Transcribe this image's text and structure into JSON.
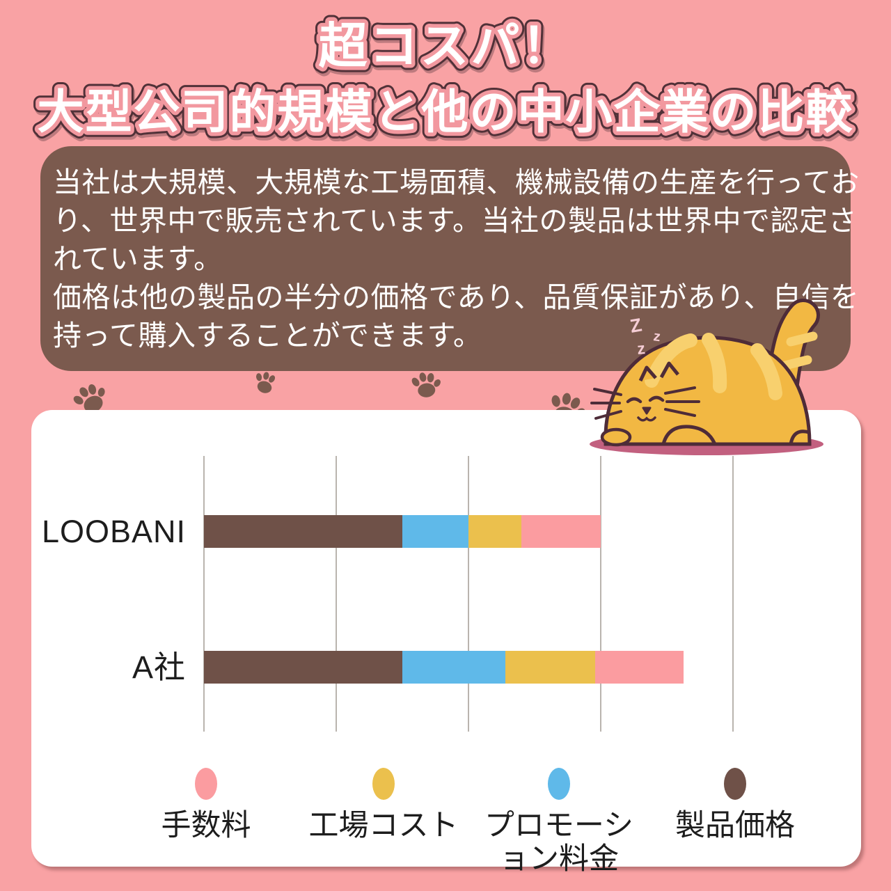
{
  "title": {
    "line1": "超コスパ！",
    "line2": "大型公司的規模と他の中小企業の比較"
  },
  "intro_box": {
    "lines": [
      "当社は大規模、大規模な工場面積、機械設備の生産を行ってお",
      "り、世界中で販売されています。当社の製品は世界中で認定さ",
      "れています。",
      "価格は他の製品の半分の価格であり、品質保証があり、自信を",
      "持って購入することができます。"
    ]
  },
  "decor": {
    "cat": "sleeping-fat-orange-cat",
    "zzz": [
      "Z",
      "z",
      "z"
    ],
    "paw_print_count": 4
  },
  "colors": {
    "background_pink": "#f9a2a4",
    "title_fill": "#ffffff",
    "title_stroke_pink": "#f2989f",
    "title_outline_dark": "#513138",
    "intro_box_bg": "#7b5a4e",
    "intro_box_text": "#ffffff",
    "card_bg": "#ffffff",
    "gridline": "#b9b4ae",
    "paw_brown": "#7b5a4e",
    "cat_body": "#f2b843",
    "cat_stripe": "#f8d06e",
    "cat_outline": "#4e2c38",
    "cat_shadow": "#c2607f",
    "zzz_pink": "#f5cdd5"
  },
  "chart_data": {
    "type": "bar",
    "orientation": "horizontal",
    "title": "",
    "xlabel": "",
    "ylabel": "",
    "axis_tick_labels_visible": false,
    "grid": true,
    "gridlines": 5,
    "xlim": [
      0,
      4
    ],
    "legend_position": "bottom",
    "legend_marker": "ellipse",
    "categories": [
      "LOOBANI",
      "A社"
    ],
    "series": [
      {
        "name": "製品価格",
        "color": "#6f5148",
        "values": [
          1.5,
          1.5
        ]
      },
      {
        "name": "プロモーション料金",
        "color": "#5fb9e9",
        "values": [
          0.5,
          0.78
        ]
      },
      {
        "name": "工場コスト",
        "color": "#ebc04d",
        "values": [
          0.4,
          0.68
        ]
      },
      {
        "name": "手数料",
        "color": "#fb9ca0",
        "values": [
          0.6,
          0.67
        ]
      }
    ],
    "stack_order": [
      "製品価格",
      "プロモーション料金",
      "工場コスト",
      "手数料"
    ],
    "legend_order": [
      "手数料",
      "工場コスト",
      "プロモーション料金",
      "製品価格"
    ],
    "totals": [
      3.0,
      3.65
    ]
  }
}
